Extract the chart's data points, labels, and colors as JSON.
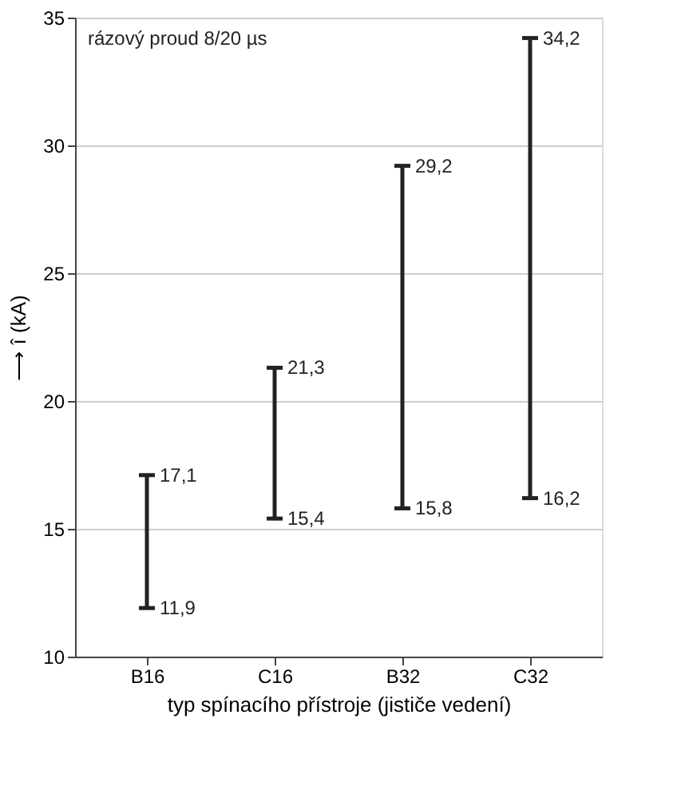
{
  "chart_data": {
    "type": "bar",
    "categories": [
      "B16",
      "C16",
      "B32",
      "C32"
    ],
    "base": [
      11.9,
      15.4,
      15.8,
      16.2
    ],
    "values": [
      5.2,
      5.9,
      13.4,
      18.0
    ],
    "color": "#222222",
    "xlabel": "typ spínacího přístroje (jističe vedení)",
    "ylabel": "⟶ î (kA)",
    "ylim": [
      10,
      35
    ],
    "yticks": [
      10,
      15,
      20,
      25,
      30,
      35
    ],
    "grid": "y",
    "annotations": [
      "rázový proud 8/20 µs",
      {
        "text": "11,9",
        "x": "B16",
        "y": 11.9
      },
      {
        "text": "17,1",
        "x": "B16",
        "y": 17.1
      },
      {
        "text": "15,4",
        "x": "C16",
        "y": 15.4
      },
      {
        "text": "21,3",
        "x": "C16",
        "y": 21.3
      },
      {
        "text": "15,8",
        "x": "B32",
        "y": 15.8
      },
      {
        "text": "29,2",
        "x": "B32",
        "y": 29.2
      },
      {
        "text": "16,2",
        "x": "C32",
        "y": 16.2
      },
      {
        "text": "34,2",
        "x": "C32",
        "y": 34.2
      }
    ]
  }
}
